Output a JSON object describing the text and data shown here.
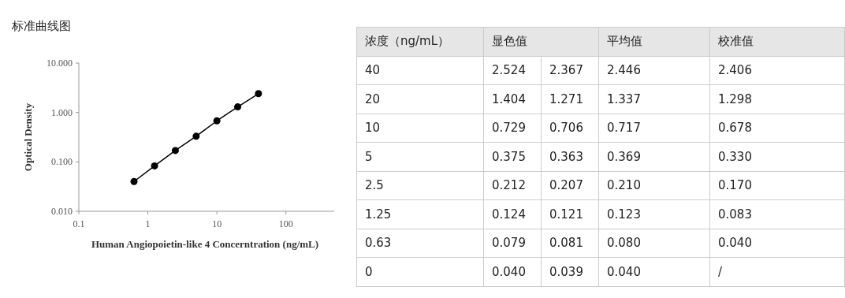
{
  "chart_data": [
    {
      "type": "line",
      "title": "标准曲线图",
      "xlabel": "Human Angiopoietin-like 4 Concerntration (ng/mL)",
      "ylabel": "Optical Density",
      "log": "xy",
      "marker": "circle",
      "line_style": "solid",
      "x": [
        0.63,
        1.25,
        2.5,
        5,
        10,
        20,
        40
      ],
      "series": [
        {
          "color": "#000000",
          "values": [
            0.04,
            0.083,
            0.17,
            0.33,
            0.678,
            1.298,
            2.406
          ]
        }
      ],
      "xlim": [
        0.1,
        500
      ],
      "xticks": [
        0.1,
        1,
        10,
        100
      ],
      "ylim": [
        0.01,
        10
      ],
      "yticks": [
        {
          "value": 0.01,
          "label": "0.010"
        },
        {
          "value": 0.1,
          "label": "0.100"
        },
        {
          "value": 1,
          "label": "1.000"
        },
        {
          "value": 10,
          "label": "10.000"
        }
      ]
    },
    {
      "type": "other",
      "categories": [
        "浓度（ng/mL）",
        "显色值",
        null,
        "平均值",
        "校准值"
      ],
      "cell_labels": [
        [
          "40",
          "2.524",
          "2.367",
          "2.446",
          "2.406"
        ],
        [
          "20",
          "1.404",
          "1.271",
          "1.337",
          "1.298"
        ],
        [
          "10",
          "0.729",
          "0.706",
          "0.717",
          "0.678"
        ],
        [
          "5",
          "0.375",
          "0.363",
          "0.369",
          "0.330"
        ],
        [
          "2.5",
          "0.212",
          "0.207",
          "0.210",
          "0.170"
        ],
        [
          "1.25",
          "0.124",
          "0.121",
          "0.123",
          "0.083"
        ],
        [
          "0.63",
          "0.079",
          "0.081",
          "0.080",
          "0.040"
        ],
        [
          "0",
          "0.040",
          "0.039",
          "0.040",
          "/"
        ]
      ]
    }
  ]
}
